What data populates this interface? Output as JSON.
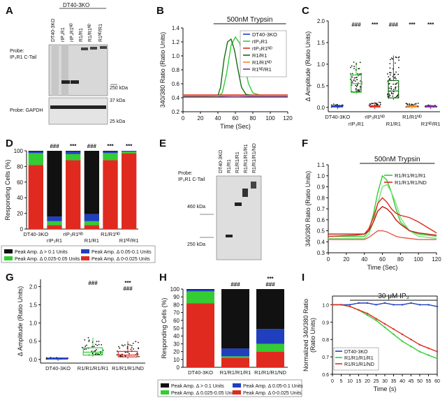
{
  "figure": {
    "panel_letters": [
      "A",
      "B",
      "C",
      "D",
      "E",
      "F",
      "G",
      "H",
      "I"
    ],
    "colors": {
      "blue": "#1f3fbf",
      "green": "#33cc33",
      "lightgreen": "#7be07b",
      "red": "#e02a1f",
      "orange": "#f08a24",
      "purple": "#7a2fa0",
      "darkgreen": "#166b16",
      "black": "#111111"
    }
  },
  "panel_a": {
    "group_label": "DT40-3KO",
    "lanes": [
      "DT40-3KO",
      "rIP₃R1",
      "rIP₃R1ᴺᴰ",
      "R1/R1",
      "R1/R1ᴺᴰ",
      "R1ᴺᴰ/R1"
    ],
    "probe_top": "Probe:",
    "probe_top2": "IP₃R1 C-Tail",
    "probe_bottom": "Probe: GAPDH",
    "markers": [
      "250 kDa",
      "37 kDa",
      "25 kDa"
    ]
  },
  "panel_b": {
    "chart_data": {
      "type": "line",
      "title": "500nM Trypsin",
      "xlabel": "Time (Sec)",
      "ylabel": "340/380 Ratio (Ratio Units)",
      "xlim": [
        0,
        120
      ],
      "ylim": [
        0.2,
        1.4
      ],
      "xticks": [
        0,
        20,
        40,
        60,
        80,
        100,
        120
      ],
      "yticks": [
        0.2,
        0.4,
        0.6,
        0.8,
        1.0,
        1.2,
        1.4
      ],
      "stim_bar": [
        35,
        118
      ],
      "series": [
        {
          "name": "DT40-3KO",
          "color": "#1f3fbf",
          "x": [
            0,
            20,
            40,
            60,
            80,
            100,
            120
          ],
          "y": [
            0.43,
            0.43,
            0.42,
            0.43,
            0.42,
            0.42,
            0.42
          ]
        },
        {
          "name": "rIP₃R1",
          "color": "#33cc33",
          "x": [
            0,
            20,
            40,
            45,
            50,
            55,
            60,
            65,
            70,
            75,
            80,
            90,
            120
          ],
          "y": [
            0.42,
            0.42,
            0.42,
            0.47,
            0.75,
            1.15,
            1.27,
            1.18,
            0.9,
            0.6,
            0.47,
            0.43,
            0.43
          ]
        },
        {
          "name": "rIP₃R1ᴺᴰ",
          "color": "#e02a1f",
          "x": [
            0,
            20,
            40,
            60,
            80,
            100,
            120
          ],
          "y": [
            0.44,
            0.44,
            0.44,
            0.44,
            0.44,
            0.44,
            0.44
          ]
        },
        {
          "name": "R1/R1",
          "color": "#166b16",
          "x": [
            0,
            20,
            40,
            43,
            47,
            51,
            55,
            59,
            63,
            67,
            72,
            80,
            120
          ],
          "y": [
            0.42,
            0.42,
            0.43,
            0.55,
            0.95,
            1.2,
            1.24,
            1.08,
            0.8,
            0.55,
            0.45,
            0.43,
            0.43
          ]
        },
        {
          "name": "R1/R1ᴺᴰ",
          "color": "#f08a24",
          "x": [
            0,
            20,
            40,
            60,
            80,
            100,
            120
          ],
          "y": [
            0.43,
            0.43,
            0.43,
            0.43,
            0.43,
            0.43,
            0.43
          ]
        },
        {
          "name": "R1ᴺᴰ/R1",
          "color": "#7a2fa0",
          "x": [
            0,
            20,
            40,
            60,
            80,
            100,
            120
          ],
          "y": [
            0.41,
            0.41,
            0.41,
            0.41,
            0.41,
            0.41,
            0.41
          ]
        }
      ]
    }
  },
  "panel_c": {
    "chart_data": {
      "type": "box",
      "ylabel": "Δ Amplitude (Ratio Units)",
      "ylim": [
        -0.1,
        2.0
      ],
      "yticks": [
        0.0,
        0.5,
        1.0,
        1.5,
        2.0
      ],
      "categories": [
        "DT40-3KO",
        "rIP₃R1",
        "rIP₃R1ᴺᴰ",
        "R1/R1",
        "R1/R1ᴺᴰ",
        "R1ᴺᴰ/R1"
      ],
      "colors": [
        "#1f3fbf",
        "#33cc33",
        "#e02a1f",
        "#166b16",
        "#f08a24",
        "#7a2fa0"
      ],
      "medians": [
        0.02,
        0.55,
        0.02,
        0.38,
        0.02,
        0.02
      ],
      "q1": [
        0.01,
        0.35,
        0.01,
        0.22,
        0.01,
        0.01
      ],
      "q3": [
        0.04,
        0.75,
        0.04,
        0.62,
        0.04,
        0.04
      ],
      "whisker_high": [
        0.08,
        1.05,
        0.12,
        1.2,
        0.1,
        0.06
      ],
      "significance": [
        "",
        "###",
        "***",
        "###",
        "***",
        "***"
      ]
    }
  },
  "panel_d": {
    "chart_data": {
      "type": "stacked_bar",
      "ylabel": "Responding Cells (%)",
      "ylim": [
        0,
        100
      ],
      "yticks": [
        0,
        20,
        40,
        60,
        80,
        100
      ],
      "categories": [
        "DT40-3KO",
        "rIP₃R1",
        "rIP₃R1ᴺᴰ",
        "R1/R1",
        "R1/R1ᴺᴰ",
        "R1ᴺᴰ/R1"
      ],
      "series": [
        {
          "name": "Peak Amp. Δ 0-0.025 Units",
          "color": "#e02a1f",
          "values": [
            82,
            5,
            88,
            5,
            88,
            97
          ]
        },
        {
          "name": "Peak Amp. Δ 0.025-0.05 Units",
          "color": "#33cc33",
          "values": [
            15,
            5,
            8,
            5,
            9,
            2
          ]
        },
        {
          "name": "Peak Amp. Δ 0.05-0.1 Units",
          "color": "#1f3fbf",
          "values": [
            2,
            6,
            3,
            9,
            2,
            1
          ]
        },
        {
          "name": "Peak Amp. Δ > 0.1 Units",
          "color": "#111111",
          "values": [
            1,
            84,
            1,
            81,
            1,
            0
          ]
        }
      ],
      "significance": [
        "",
        "###",
        "***",
        "###",
        "***",
        "***"
      ]
    }
  },
  "panel_e": {
    "lanes": [
      "DT40-3KO",
      "R1/R1",
      "R1/R1/R1",
      "R1/R1/R1/R1",
      "R1/R1/R1/ND"
    ],
    "probe": "Probe:",
    "probe2": "IP₃R1 C-Tail",
    "markers": [
      "460 kDa",
      "250 kDa"
    ]
  },
  "panel_f": {
    "chart_data": {
      "type": "line",
      "title": "500nM Trypsin",
      "xlabel": "Time (Sec)",
      "ylabel": "340/380 Ratio (Ratio Units)",
      "xlim": [
        0,
        120
      ],
      "ylim": [
        0.3,
        1.1
      ],
      "xticks": [
        0,
        20,
        40,
        60,
        80,
        100,
        120
      ],
      "yticks": [
        0.3,
        0.4,
        0.5,
        0.6,
        0.7,
        0.8,
        0.9,
        1.0,
        1.1
      ],
      "stim_bar": [
        35,
        118
      ],
      "series": [
        {
          "name": "R1/R1/R1/R1",
          "color": "#33cc33",
          "x": [
            0,
            30,
            40,
            45,
            50,
            55,
            60,
            65,
            70,
            75,
            80,
            90,
            100,
            120
          ],
          "y": [
            0.45,
            0.45,
            0.45,
            0.5,
            0.65,
            0.85,
            1.0,
            0.96,
            0.85,
            0.7,
            0.58,
            0.5,
            0.47,
            0.45
          ]
        },
        {
          "name": "R1/R1/R1/R1",
          "color": "#7be07b",
          "x": [
            0,
            30,
            40,
            45,
            50,
            55,
            60,
            65,
            70,
            75,
            80,
            90,
            100,
            120
          ],
          "y": [
            0.43,
            0.43,
            0.43,
            0.47,
            0.58,
            0.75,
            0.9,
            0.92,
            0.85,
            0.75,
            0.62,
            0.5,
            0.45,
            0.43
          ]
        },
        {
          "name": "R1/R1/R1/ND",
          "color": "#e02a1f",
          "x": [
            0,
            30,
            40,
            45,
            50,
            55,
            60,
            65,
            70,
            75,
            80,
            90,
            100,
            120
          ],
          "y": [
            0.45,
            0.46,
            0.47,
            0.52,
            0.62,
            0.75,
            0.8,
            0.76,
            0.7,
            0.66,
            0.64,
            0.62,
            0.58,
            0.48
          ]
        },
        {
          "name": "R1/R1/R1/ND",
          "color": "#c21a14",
          "x": [
            0,
            30,
            40,
            45,
            50,
            55,
            60,
            65,
            70,
            75,
            80,
            90,
            100,
            120
          ],
          "y": [
            0.47,
            0.47,
            0.47,
            0.5,
            0.58,
            0.68,
            0.72,
            0.7,
            0.66,
            0.6,
            0.56,
            0.5,
            0.48,
            0.46
          ]
        },
        {
          "name": "R1/R1/R1/ND",
          "color": "#e85a4a",
          "x": [
            0,
            30,
            40,
            45,
            50,
            55,
            60,
            65,
            70,
            75,
            80,
            90,
            100,
            120
          ],
          "y": [
            0.42,
            0.42,
            0.42,
            0.44,
            0.47,
            0.5,
            0.5,
            0.49,
            0.47,
            0.45,
            0.44,
            0.43,
            0.42,
            0.42
          ]
        }
      ],
      "legend": [
        {
          "name": "R1/R1/R1/R1",
          "color": "#33cc33"
        },
        {
          "name": "R1/R1/R1/ND",
          "color": "#e02a1f"
        }
      ]
    }
  },
  "panel_g": {
    "chart_data": {
      "type": "box",
      "ylabel": "Δ Amplitude (Ratio Units)",
      "ylim": [
        -0.1,
        2.2
      ],
      "yticks": [
        0.0,
        0.5,
        1.0,
        1.5,
        2.0
      ],
      "categories": [
        "DT40-3KO",
        "R1/R1/R1/R1",
        "R1/R1/R1/ND"
      ],
      "colors": [
        "#1f3fbf",
        "#33cc33",
        "#e02a1f"
      ],
      "medians": [
        0.02,
        0.2,
        0.12
      ],
      "q1": [
        0.01,
        0.12,
        0.07
      ],
      "q3": [
        0.04,
        0.32,
        0.22
      ],
      "whisker_high": [
        0.06,
        0.6,
        0.5
      ],
      "significance": [
        "",
        "###",
        "***\n###"
      ]
    }
  },
  "panel_h": {
    "chart_data": {
      "type": "stacked_bar",
      "ylabel": "Responding Cells (%)",
      "ylim": [
        0,
        100
      ],
      "yticks": [
        0,
        10,
        20,
        30,
        40,
        50,
        60,
        70,
        80,
        90,
        100
      ],
      "categories": [
        "DT40-3KO",
        "R1/R1/R1/R1",
        "R1/R1/R1/ND"
      ],
      "series": [
        {
          "name": "Peak Amp. Δ 0-0.025 Units",
          "color": "#e02a1f",
          "values": [
            82,
            12,
            20
          ]
        },
        {
          "name": "Peak Amp. Δ 0.025-0.05 Units",
          "color": "#33cc33",
          "values": [
            15,
            2,
            10
          ]
        },
        {
          "name": "Peak Amp. Δ 0.05-0.1 Units",
          "color": "#1f3fbf",
          "values": [
            2,
            10,
            19
          ]
        },
        {
          "name": "Peak Amp. Δ > 0.1 Units",
          "color": "#111111",
          "values": [
            1,
            76,
            51
          ]
        }
      ],
      "significance": [
        "",
        "###",
        "***\n###"
      ]
    }
  },
  "panel_i": {
    "chart_data": {
      "type": "line",
      "title": "30 μM IP₃",
      "xlabel": "Time (s)",
      "ylabel": "Normalized 340/380 Ratio (Ratio Units)",
      "xlim": [
        0,
        60
      ],
      "ylim": [
        0.6,
        1.05
      ],
      "xticks": [
        0,
        5,
        10,
        15,
        20,
        25,
        30,
        35,
        40,
        45,
        50,
        55,
        60
      ],
      "yticks": [
        0.6,
        0.7,
        0.8,
        0.9,
        1.0
      ],
      "stim_bar": [
        10,
        60
      ],
      "series": [
        {
          "name": "DT40-3KO",
          "color": "#1f3fbf",
          "x": [
            0,
            5,
            10,
            15,
            20,
            25,
            30,
            35,
            40,
            45,
            50,
            55,
            60
          ],
          "y": [
            1.0,
            1.0,
            1.0,
            1.01,
            1.01,
            1.0,
            1.01,
            1.0,
            1.0,
            1.01,
            1.0,
            1.0,
            0.99
          ]
        },
        {
          "name": "R1/R1/R1/R1",
          "color": "#33cc33",
          "x": [
            0,
            5,
            10,
            15,
            20,
            25,
            30,
            35,
            40,
            45,
            50,
            55,
            60
          ],
          "y": [
            1.0,
            1.0,
            0.99,
            0.97,
            0.94,
            0.91,
            0.87,
            0.83,
            0.79,
            0.76,
            0.73,
            0.71,
            0.69
          ]
        },
        {
          "name": "R1/R1/R1/ND",
          "color": "#e02a1f",
          "x": [
            0,
            5,
            10,
            15,
            20,
            25,
            30,
            35,
            40,
            45,
            50,
            55,
            60
          ],
          "y": [
            1.0,
            1.0,
            0.99,
            0.97,
            0.95,
            0.92,
            0.89,
            0.86,
            0.83,
            0.8,
            0.77,
            0.75,
            0.73
          ]
        }
      ]
    }
  }
}
